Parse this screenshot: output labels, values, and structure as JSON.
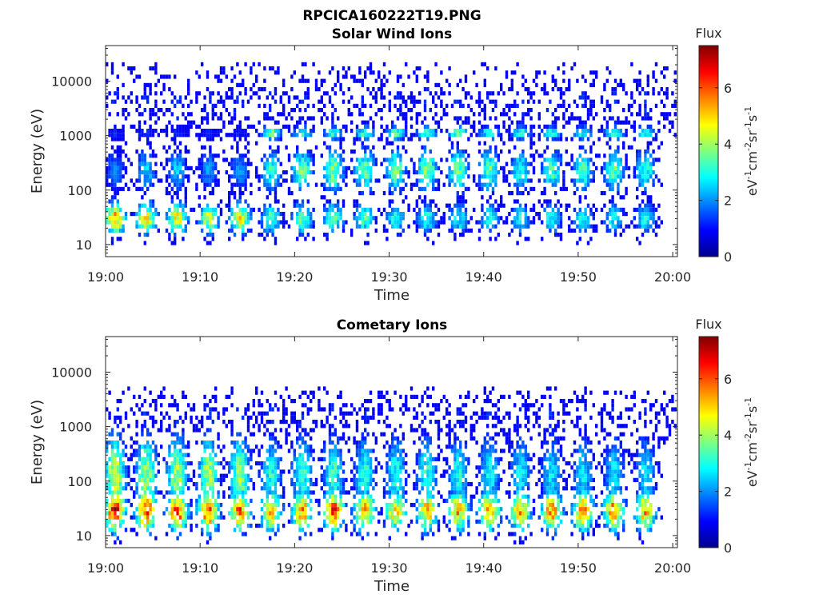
{
  "figure": {
    "file_title": "RPCICA160222T19.PNG",
    "background": "#ffffff"
  },
  "chart_data": [
    {
      "type": "heatmap",
      "title": "Solar Wind Ions",
      "xlabel": "Time",
      "ylabel": "Energy (eV)",
      "y_scale": "log",
      "xlim": [
        "19:00",
        "20:00"
      ],
      "ylim": [
        6,
        45000
      ],
      "x_ticks": [
        "19:00",
        "19:10",
        "19:20",
        "19:30",
        "19:40",
        "19:50",
        "20:00"
      ],
      "y_ticks": [
        {
          "value": 10,
          "label": "10"
        },
        {
          "value": 100,
          "label": "100"
        },
        {
          "value": 1000,
          "label": "1000"
        },
        {
          "value": 10000,
          "label": "10000"
        }
      ],
      "grid": false,
      "colorbar": {
        "title": "Flux",
        "label": "eV-1cm-2sr-1s-1",
        "range": [
          0,
          7.5
        ],
        "ticks": [
          0,
          2,
          4,
          6
        ],
        "colormap": "jet"
      },
      "sweep_times_min": [
        1.0,
        4.3,
        7.6,
        10.9,
        14.2,
        17.5,
        20.8,
        24.1,
        27.4,
        30.7,
        34.0,
        37.3,
        40.6,
        43.9,
        47.2,
        50.5,
        53.8,
        57.1
      ],
      "bands": [
        {
          "name": "low",
          "center_eV": 27,
          "width_decades": 0.22,
          "peak_flux": [
            5.3,
            4.8,
            4.6,
            4.2,
            4.6,
            3.3,
            3.6,
            3.5,
            3.4,
            3.0,
            3.0,
            2.9,
            2.8,
            2.8,
            2.9,
            2.8,
            2.8,
            2.9
          ]
        },
        {
          "name": "mid",
          "center_eV": 210,
          "width_decades": 0.3,
          "peak_flux": [
            1.8,
            2.4,
            2.4,
            2.0,
            2.0,
            3.0,
            3.6,
            3.8,
            3.6,
            3.6,
            3.9,
            3.7,
            3.5,
            3.0,
            3.3,
            3.3,
            3.4,
            3.2
          ]
        },
        {
          "name": "high",
          "center_eV": 1050,
          "width_decades": 0.1,
          "peak_flux": [
            1.2,
            1.4,
            1.2,
            1.2,
            1.2,
            3.7,
            3.0,
            3.2,
            3.3,
            3.4,
            3.2,
            3.6,
            3.0,
            3.0,
            3.0,
            3.0,
            3.1,
            3.0
          ]
        },
        {
          "name": "sparse",
          "center_eV": 3500,
          "width_decades": 0.5,
          "peak_flux": [
            1.2,
            1.2,
            1.2,
            1.2,
            1.2,
            1.2,
            1.2,
            1.2,
            1.2,
            1.2,
            1.2,
            1.2,
            1.2,
            1.2,
            1.2,
            1.2,
            1.2,
            1.2
          ]
        }
      ]
    },
    {
      "type": "heatmap",
      "title": "Cometary Ions",
      "xlabel": "Time",
      "ylabel": "Energy (eV)",
      "y_scale": "log",
      "xlim": [
        "19:00",
        "20:00"
      ],
      "ylim": [
        6,
        45000
      ],
      "x_ticks": [
        "19:00",
        "19:10",
        "19:20",
        "19:30",
        "19:40",
        "19:50",
        "20:00"
      ],
      "y_ticks": [
        {
          "value": 10,
          "label": "10"
        },
        {
          "value": 100,
          "label": "100"
        },
        {
          "value": 1000,
          "label": "1000"
        },
        {
          "value": 10000,
          "label": "10000"
        }
      ],
      "grid": false,
      "colorbar": {
        "title": "Flux",
        "label": "eV-1cm-2sr-1s-1",
        "range": [
          0,
          7.5
        ],
        "ticks": [
          0,
          2,
          4,
          6
        ],
        "colormap": "jet"
      },
      "sweep_times_min": [
        1.0,
        4.3,
        7.6,
        10.9,
        14.2,
        17.5,
        20.8,
        24.1,
        27.4,
        30.7,
        34.0,
        37.3,
        40.6,
        43.9,
        47.2,
        50.5,
        53.8,
        57.1
      ],
      "bands": [
        {
          "name": "low",
          "center_eV": 25,
          "width_decades": 0.28,
          "peak_flux": [
            6.5,
            6.0,
            6.0,
            6.0,
            5.6,
            5.2,
            5.4,
            6.0,
            5.3,
            5.0,
            5.2,
            5.2,
            5.3,
            5.2,
            5.5,
            5.5,
            5.6,
            5.2
          ]
        },
        {
          "name": "mid",
          "center_eV": 120,
          "width_decades": 0.55,
          "peak_flux": [
            4.4,
            4.0,
            4.0,
            4.0,
            3.8,
            3.0,
            3.2,
            3.2,
            3.0,
            3.0,
            3.0,
            2.9,
            2.8,
            2.7,
            2.6,
            2.6,
            2.6,
            2.6
          ]
        },
        {
          "name": "sparse",
          "center_eV": 1500,
          "width_decades": 0.35,
          "peak_flux": [
            1.2,
            1.2,
            1.2,
            1.2,
            1.2,
            1.2,
            1.2,
            1.2,
            1.2,
            1.2,
            1.2,
            1.2,
            1.2,
            1.2,
            1.2,
            1.2,
            1.2,
            1.2
          ]
        }
      ]
    }
  ]
}
